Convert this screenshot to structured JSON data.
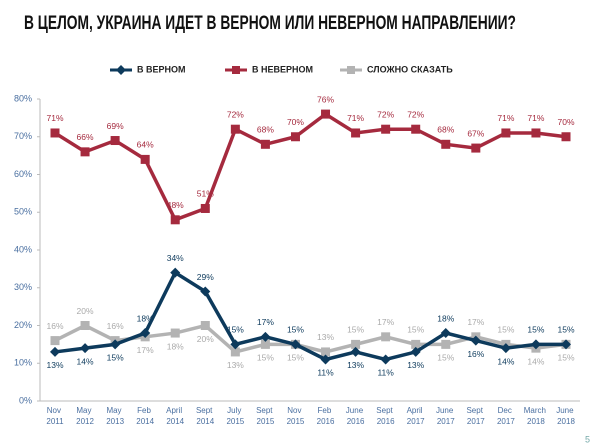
{
  "page_number": "5",
  "chart_data": {
    "type": "line",
    "title": "В ЦЕЛОМ, УКРАИНА ИДЕТ В ВЕРНОМ ИЛИ НЕВЕРНОМ НАПРАВЛЕНИИ?",
    "categories": [
      "Nov 2011",
      "May 2012",
      "May 2013",
      "Feb 2014",
      "April 2014",
      "Sept 2014",
      "July 2015",
      "Sept 2015",
      "Nov 2015",
      "Feb 2016",
      "June 2016",
      "Sept 2016",
      "April 2017",
      "June 2017",
      "Sept 2017",
      "Dec 2017",
      "March 2018",
      "June 2018"
    ],
    "series": [
      {
        "name": "В ВЕРНОМ",
        "color": "#0d3a5c",
        "marker": "diamond",
        "values": [
          13,
          14,
          15,
          18,
          34,
          29,
          15,
          17,
          15,
          11,
          13,
          11,
          13,
          18,
          16,
          14,
          15,
          15
        ],
        "value_labels": [
          "13%",
          "14%",
          "15%",
          "18%",
          "34%",
          "29%",
          "15%",
          "17%",
          "15%",
          "11%",
          "13%",
          "11%",
          "13%",
          "18%",
          "16%",
          "14%",
          "15%",
          "15%"
        ]
      },
      {
        "name": "В НЕВЕРНОМ",
        "color": "#a52a3e",
        "marker": "square",
        "values": [
          71,
          66,
          69,
          64,
          48,
          51,
          72,
          68,
          70,
          76,
          71,
          72,
          72,
          68,
          67,
          71,
          71,
          70
        ],
        "value_labels": [
          "71%",
          "66%",
          "69%",
          "64%",
          "48%",
          "51%",
          "72%",
          "68%",
          "70%",
          "76%",
          "71%",
          "72%",
          "72%",
          "68%",
          "67%",
          "71%",
          "71%",
          "70%"
        ]
      },
      {
        "name": "СЛОЖНО СКАЗАТЬ",
        "color": "#b3b3b3",
        "marker": "square",
        "values": [
          16,
          20,
          16,
          17,
          18,
          20,
          13,
          15,
          15,
          13,
          15,
          17,
          15,
          15,
          17,
          15,
          14,
          15
        ],
        "value_labels": [
          "16%",
          "20%",
          "16%",
          "17%",
          "18%",
          "20%",
          "13%",
          "15%",
          "15%",
          "13%",
          "15%",
          "17%",
          "15%",
          "15%",
          "17%",
          "15%",
          "14%",
          "15%"
        ]
      }
    ],
    "ylim": [
      0,
      80
    ],
    "yticks": [
      {
        "value": 0,
        "label": "0%"
      },
      {
        "value": 10,
        "label": "10%"
      },
      {
        "value": 20,
        "label": "20%"
      },
      {
        "value": 30,
        "label": "30%"
      },
      {
        "value": 40,
        "label": "40%"
      },
      {
        "value": 50,
        "label": "50%"
      },
      {
        "value": 60,
        "label": "60%"
      },
      {
        "value": 70,
        "label": "70%"
      },
      {
        "value": 80,
        "label": "80%"
      }
    ],
    "grid": false,
    "legend": "top"
  }
}
